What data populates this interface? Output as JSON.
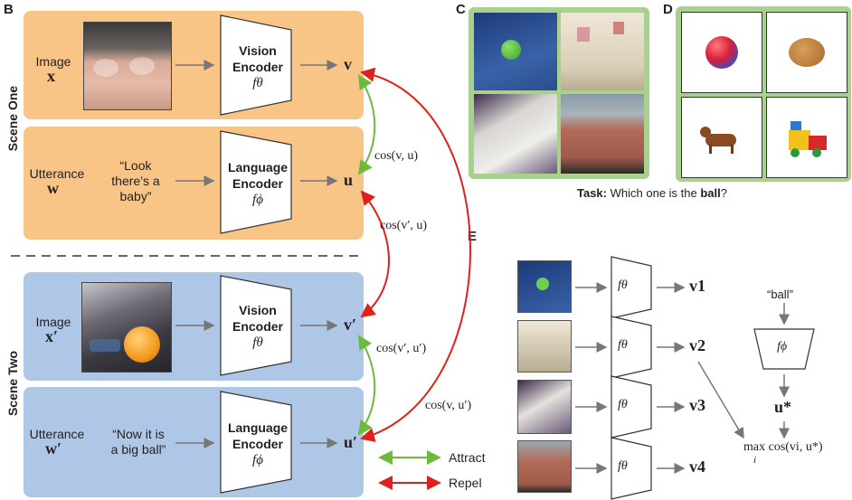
{
  "panels": {
    "B": "B",
    "C": "C",
    "D": "D",
    "E": "E"
  },
  "scene_one": {
    "title": "Scene One",
    "image_label": "Image",
    "image_var": "x",
    "utterance_label": "Utterance",
    "utterance_var": "w",
    "utterance_text_1": "“Look",
    "utterance_text_2": "there’s a",
    "utterance_text_3": "baby”",
    "vision_encoder_1": "Vision",
    "vision_encoder_2": "Encoder",
    "vision_f": "fθ",
    "language_encoder_1": "Language",
    "language_encoder_2": "Encoder",
    "language_f": "fϕ",
    "out_v": "v",
    "out_u": "u"
  },
  "scene_two": {
    "title": "Scene Two",
    "image_label": "Image",
    "image_var": "x′",
    "utterance_label": "Utterance",
    "utterance_var": "w′",
    "utterance_text_1": "“Now it is",
    "utterance_text_2": "a big ball”",
    "vision_encoder_1": "Vision",
    "vision_encoder_2": "Encoder",
    "vision_f": "fθ",
    "language_encoder_1": "Language",
    "language_encoder_2": "Encoder",
    "language_f": "fϕ",
    "out_v": "v′",
    "out_u": "u′"
  },
  "similarities": {
    "cos_v_u": "cos(v, u)",
    "cos_vp_u": "cos(v′, u)",
    "cos_vp_up": "cos(v′, u′)",
    "cos_v_up": "cos(v, u′)"
  },
  "legend": {
    "attract": "Attract",
    "repel": "Repel",
    "attract_color": "#6dbb3d",
    "repel_color": "#e0201b"
  },
  "task": {
    "prefix": "Task:",
    "question_start": "Which one is the",
    "target_word": "ball",
    "question_end": "?"
  },
  "panel_e": {
    "f_theta": "fθ",
    "outputs": [
      "v1",
      "v2",
      "v3",
      "v4"
    ],
    "query": "“ball”",
    "f_phi": "fϕ",
    "u_star": "u*",
    "max_expr": "max cos(vi, u*)",
    "max_sub": "i"
  },
  "colors": {
    "orange_panel": "#f9c586",
    "blue_panel": "#aec7e7",
    "green_frame": "#a9d18e"
  }
}
